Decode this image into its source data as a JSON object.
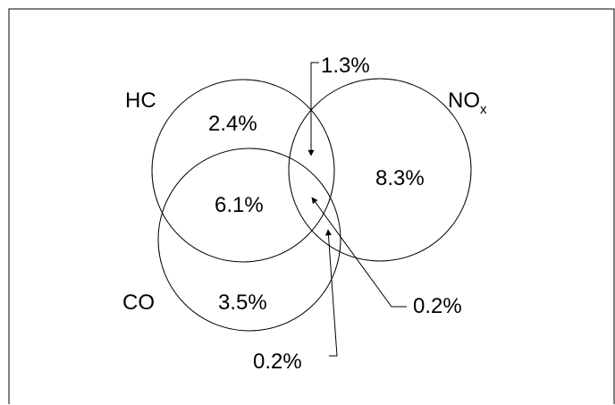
{
  "diagram": {
    "sets": {
      "hc": {
        "label": "HC"
      },
      "nox": {
        "label": "NO",
        "label_subscript": "x"
      },
      "co": {
        "label": "CO"
      }
    },
    "regions": {
      "hc_only": "2.4%",
      "nox_only": "8.3%",
      "co_only": "3.5%",
      "hc_co": "6.1%",
      "hc_nox": "1.3%",
      "hc_nox_co": "0.2%",
      "nox_co": "0.2%"
    }
  }
}
